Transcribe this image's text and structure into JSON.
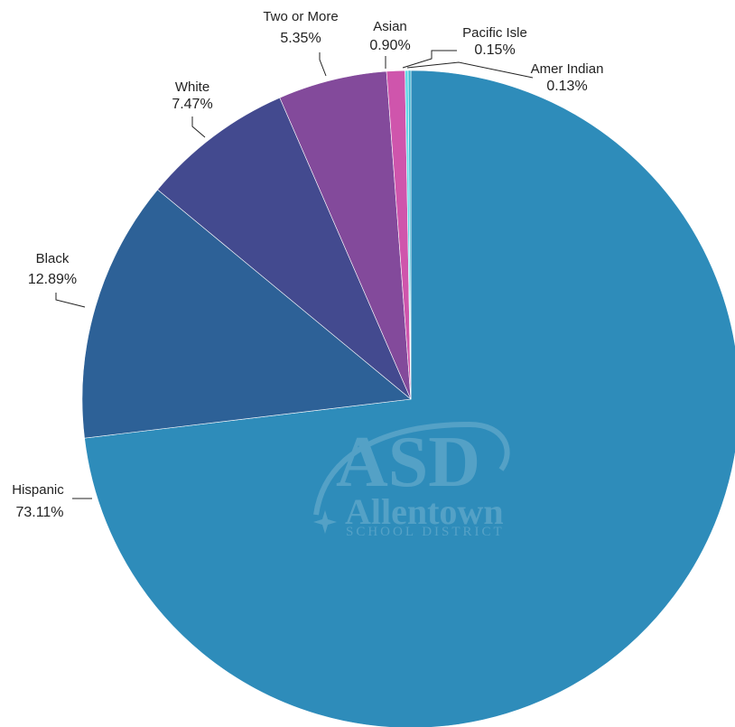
{
  "chart_data": {
    "type": "pie",
    "title": "",
    "slices": [
      {
        "label": "Hispanic",
        "value": 73.11,
        "display": "73.11%",
        "color": "#2e8cba"
      },
      {
        "label": "Black",
        "value": 12.89,
        "display": "12.89%",
        "color": "#2d6197"
      },
      {
        "label": "White",
        "value": 7.47,
        "display": "7.47%",
        "color": "#434a8f"
      },
      {
        "label": "Two or More",
        "value": 5.35,
        "display": "5.35%",
        "color": "#834a9b"
      },
      {
        "label": "Asian",
        "value": 0.9,
        "display": "0.90%",
        "color": "#cf55ac"
      },
      {
        "label": "Pacific Isle",
        "value": 0.15,
        "display": "0.15%",
        "color": "#62d9e7"
      },
      {
        "label": "Amer Indian",
        "value": 0.13,
        "display": "0.13%",
        "color": "#3fb7d3"
      }
    ]
  },
  "watermark": {
    "logo_letters": "ASD",
    "name": "Allentown",
    "subtitle": "SCHOOL DISTRICT"
  }
}
